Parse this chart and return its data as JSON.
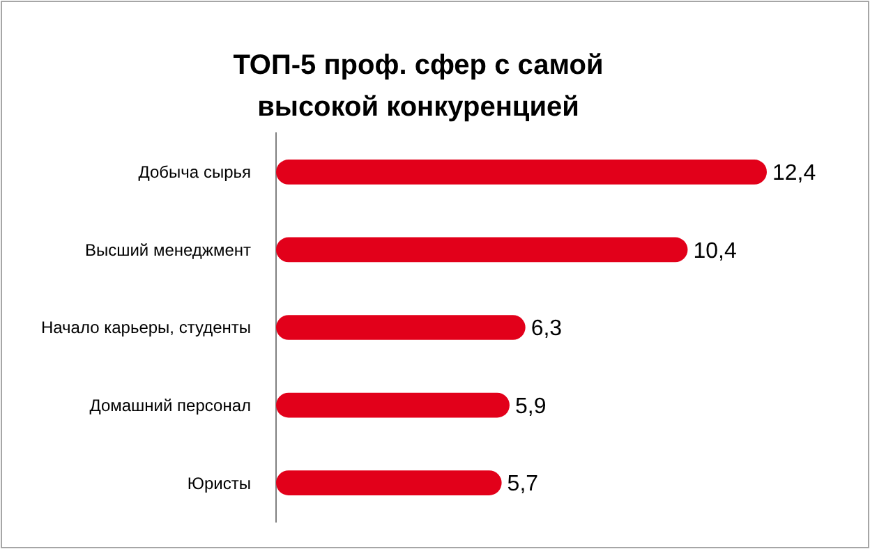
{
  "chart_data": {
    "type": "bar",
    "orientation": "horizontal",
    "title": "ТОП-5 проф. сфер с самой высокой конкуренцией",
    "categories": [
      "Добыча сырья",
      "Высший менеджмент",
      "Начало карьеры, студенты",
      "Домашний персонал",
      "Юристы"
    ],
    "values": [
      12.4,
      10.4,
      6.3,
      5.9,
      5.7
    ],
    "value_labels": [
      "12,4",
      "10,4",
      "6,3",
      "5,9",
      "5,7"
    ],
    "color": "#e2001a"
  }
}
